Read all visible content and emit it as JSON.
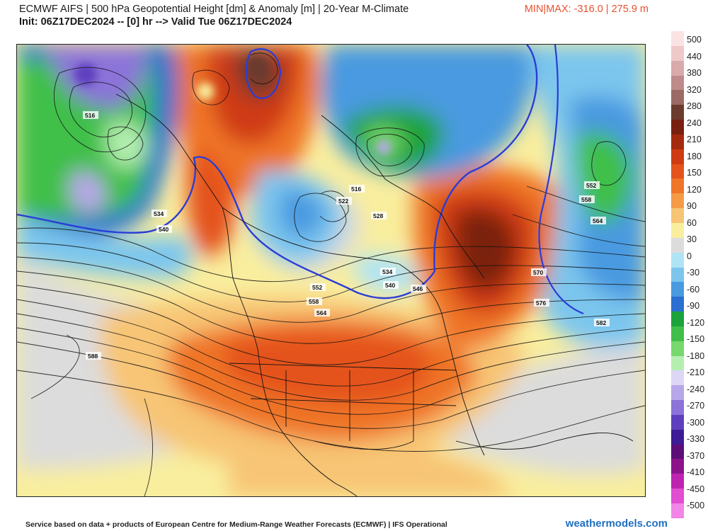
{
  "header": {
    "title": "ECMWF AIFS | 500 hPa Geopotential Height [dm] & Anomaly [m] | 20-Year M-Climate",
    "subtitle": "Init: 06Z17DEC2024 -- [0] hr --> Valid Tue 06Z17DEC2024",
    "minmax": "MIN|MAX: -316.0 | 275.9 m"
  },
  "footer": {
    "credit": "Service based on data + products of European Centre for Medium-Range Weather Forecasts (ECMWF) | IFS Operational",
    "brand": "weathermodels.com"
  },
  "colorbar": {
    "labels": [
      "500",
      "440",
      "380",
      "320",
      "280",
      "240",
      "210",
      "180",
      "150",
      "120",
      "90",
      "60",
      "30",
      "0",
      "-30",
      "-60",
      "-90",
      "-120",
      "-150",
      "-180",
      "-210",
      "-240",
      "-270",
      "-300",
      "-330",
      "-370",
      "-410",
      "-450",
      "-500"
    ],
    "colors": [
      "#fbe3e3",
      "#efc9c9",
      "#d9aaaa",
      "#bf8a8a",
      "#9c6a64",
      "#6b3b2d",
      "#7a2010",
      "#a52b0f",
      "#cf3b12",
      "#e4531b",
      "#ef7528",
      "#f59b47",
      "#f7c575",
      "#f9ee9e",
      "#dcdcdc",
      "#b0e4f5",
      "#7cc6ee",
      "#4a9ae0",
      "#2b6fd0",
      "#1aa33a",
      "#3fbf4a",
      "#77d86d",
      "#b4efb0",
      "#ddd6f4",
      "#b8a6ea",
      "#8b73d9",
      "#5e3fbe",
      "#3d1c96",
      "#5c0f78",
      "#8c138c",
      "#bf24b1",
      "#e24dd2",
      "#f285e6"
    ]
  },
  "map": {
    "contour_labels": [
      "516",
      "534",
      "540",
      "516",
      "522",
      "528",
      "552",
      "558",
      "564",
      "570",
      "576",
      "582",
      "588",
      "534",
      "546",
      "552",
      "558",
      "564",
      "540"
    ]
  }
}
